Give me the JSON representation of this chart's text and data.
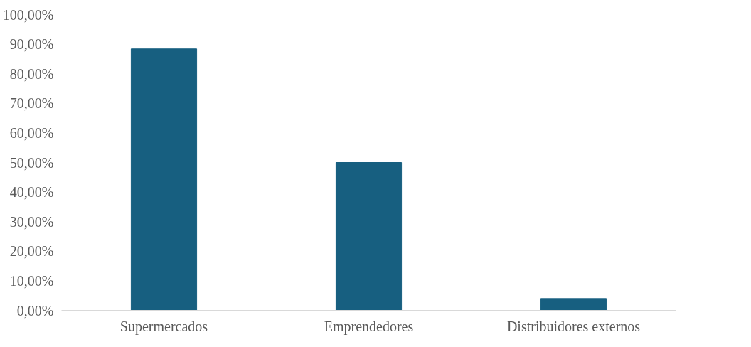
{
  "chart_data": {
    "type": "bar",
    "categories": [
      "Supermercados",
      "Emprendedores",
      "Distribuidores externos"
    ],
    "values": [
      88.4,
      50.0,
      4.0
    ],
    "color": "#175f80",
    "ylim": [
      0,
      100
    ],
    "yticks": [
      {
        "value": 0,
        "label": "0,00%"
      },
      {
        "value": 10,
        "label": "10,00%"
      },
      {
        "value": 20,
        "label": "20,00%"
      },
      {
        "value": 30,
        "label": "30,00%"
      },
      {
        "value": 40,
        "label": "40,00%"
      },
      {
        "value": 50,
        "label": "50,00%"
      },
      {
        "value": 60,
        "label": "60,00%"
      },
      {
        "value": 70,
        "label": "70,00%"
      },
      {
        "value": 80,
        "label": "80,00%"
      },
      {
        "value": 90,
        "label": "90,00%"
      },
      {
        "value": 100,
        "label": "100,00%"
      }
    ],
    "grid": false
  }
}
